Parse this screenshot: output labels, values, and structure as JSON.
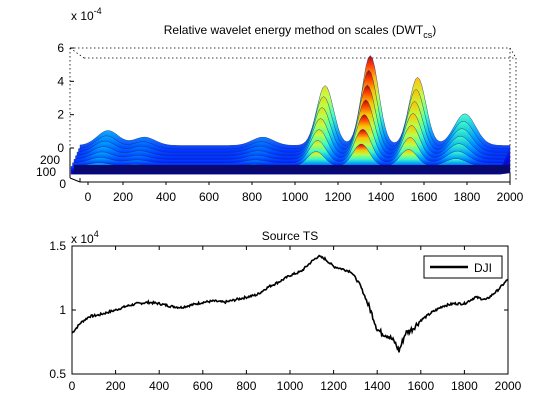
{
  "chart_data": [
    {
      "type": "surface",
      "title_main": "Relative wavelet energy method on scales (DWT",
      "title_sub": "cs",
      "title_close": ")",
      "exponent_label": "x 10",
      "exponent_power": "-4",
      "z_ticks": [
        "6",
        "4",
        "2",
        "0"
      ],
      "z_range": [
        0,
        6
      ],
      "x_ticks": [
        "0",
        "200",
        "400",
        "600",
        "800",
        "1000",
        "1200",
        "1400",
        "1600",
        "1800",
        "2000"
      ],
      "x_range": [
        0,
        2000
      ],
      "y_ticks": [
        "200",
        "100",
        "0"
      ],
      "grid": true,
      "colormap": "jet",
      "peaks": [
        {
          "x": 130,
          "z": 0.9
        },
        {
          "x": 300,
          "z": 0.5
        },
        {
          "x": 850,
          "z": 0.5
        },
        {
          "x": 1140,
          "z": 3.6
        },
        {
          "x": 1350,
          "z": 5.4
        },
        {
          "x": 1570,
          "z": 4.1
        },
        {
          "x": 1790,
          "z": 1.9
        }
      ]
    },
    {
      "type": "line",
      "title": "Source TS",
      "exponent_label": "x 10",
      "exponent_power": "4",
      "x_ticks": [
        "0",
        "200",
        "400",
        "600",
        "800",
        "1000",
        "1200",
        "1400",
        "1600",
        "1800",
        "2000"
      ],
      "x_range": [
        0,
        2000
      ],
      "y_ticks": [
        "1.5",
        "1",
        "0.5"
      ],
      "ylim": [
        0.5,
        1.5
      ],
      "legend_position": "top-right",
      "series": [
        {
          "name": "DJI",
          "color": "#000000",
          "x": [
            0,
            40,
            80,
            120,
            160,
            200,
            250,
            300,
            350,
            400,
            450,
            500,
            550,
            600,
            650,
            700,
            750,
            800,
            850,
            900,
            950,
            1000,
            1050,
            1100,
            1130,
            1160,
            1200,
            1240,
            1280,
            1320,
            1350,
            1380,
            1400,
            1420,
            1450,
            1480,
            1500,
            1530,
            1560,
            1600,
            1650,
            1700,
            1750,
            1800,
            1850,
            1900,
            1950,
            2000
          ],
          "y": [
            0.82,
            0.9,
            0.95,
            0.96,
            0.98,
            1.0,
            1.03,
            1.05,
            1.06,
            1.05,
            1.03,
            1.02,
            1.04,
            1.06,
            1.07,
            1.06,
            1.08,
            1.1,
            1.12,
            1.18,
            1.22,
            1.27,
            1.3,
            1.38,
            1.42,
            1.4,
            1.34,
            1.32,
            1.3,
            1.2,
            1.08,
            0.95,
            0.85,
            0.82,
            0.8,
            0.75,
            0.68,
            0.82,
            0.85,
            0.92,
            0.98,
            1.03,
            1.05,
            1.05,
            1.1,
            1.08,
            1.15,
            1.24
          ]
        }
      ]
    }
  ]
}
